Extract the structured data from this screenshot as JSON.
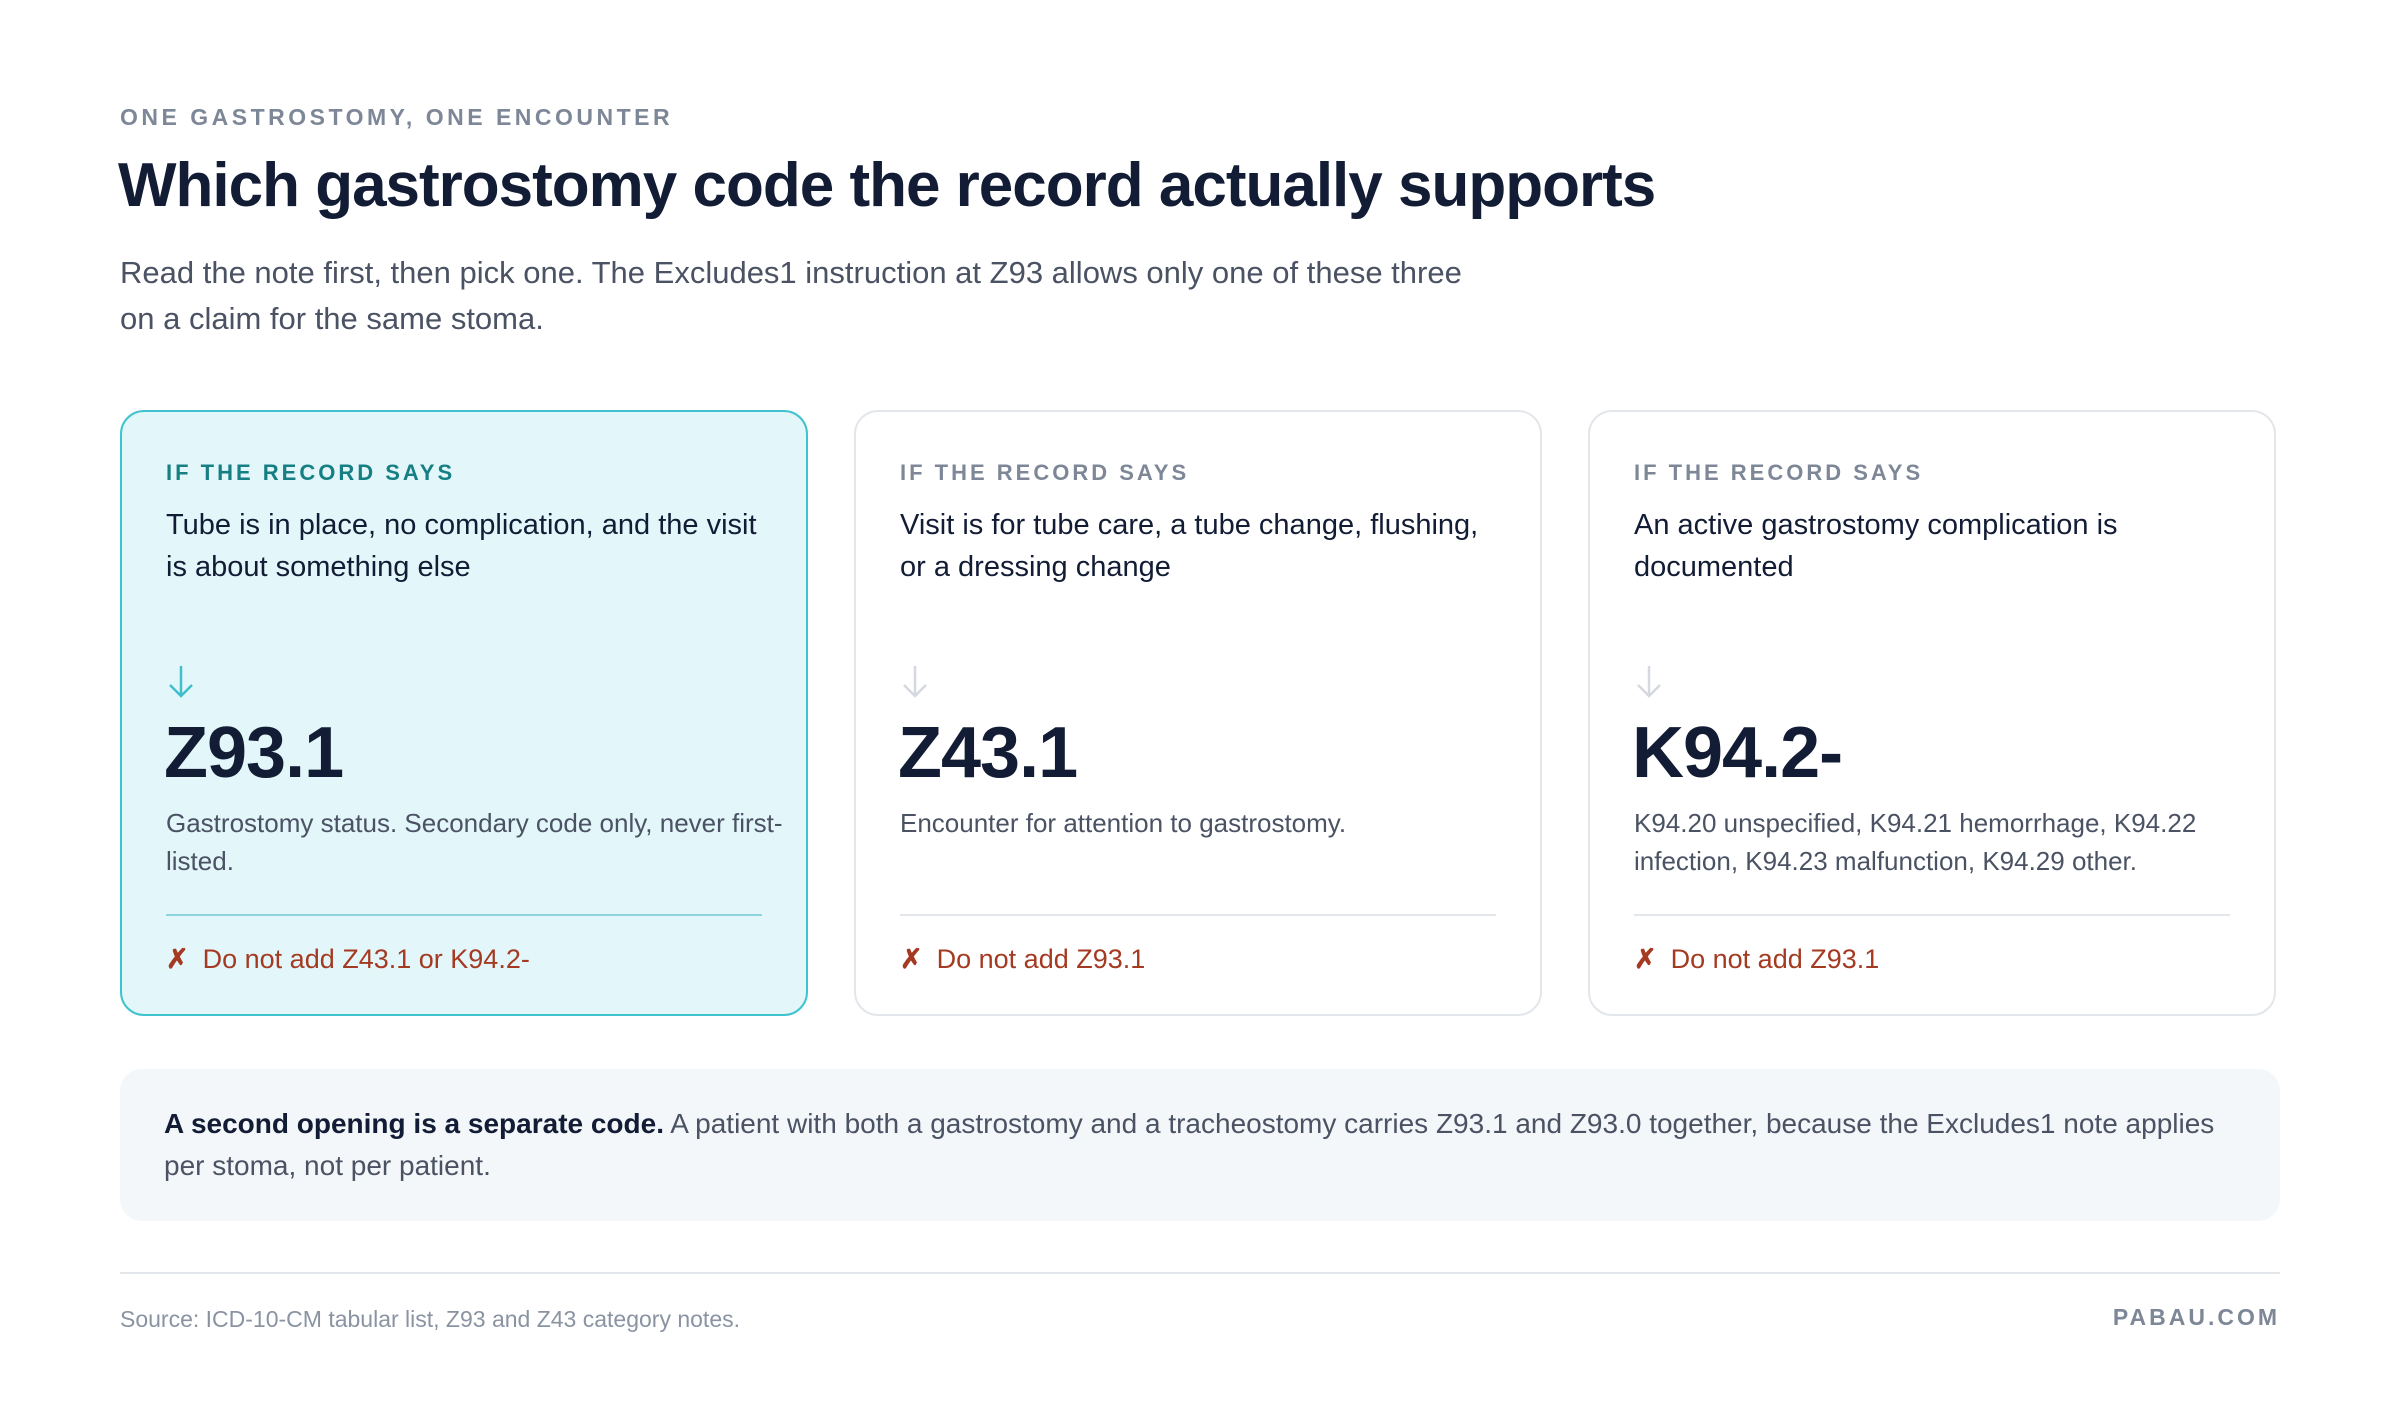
{
  "header": {
    "eyebrow": "ONE GASTROSTOMY, ONE ENCOUNTER",
    "title": "Which gastrostomy code the record actually supports",
    "subtitle": "Read the note first, then pick one. The Excludes1 instruction at Z93 allows only one of these three on a claim for the same stoma."
  },
  "cards": [
    {
      "label": "IF THE RECORD SAYS",
      "condition": "Tube is in place, no complication, and the visit is about something else",
      "code": "Z93.1",
      "description": "Gastrostomy status. Secondary code only, never first-listed.",
      "icon": "✗",
      "warning": "Do not add Z43.1 or K94.2-"
    },
    {
      "label": "IF THE RECORD SAYS",
      "condition": "Visit is for tube care, a tube change, flushing, or a dressing change",
      "code": "Z43.1",
      "description": "Encounter for attention to gastrostomy.",
      "icon": "✗",
      "warning": "Do not add Z93.1"
    },
    {
      "label": "IF THE RECORD SAYS",
      "condition": "An active gastrostomy complication is documented",
      "code": "K94.2-",
      "description": "K94.20 unspecified, K94.21 hemorrhage, K94.22 infection, K94.23 malfunction, K94.29 other.",
      "icon": "✗",
      "warning": "Do not add Z93.1"
    }
  ],
  "note": {
    "lead": "A second opening is a separate code.",
    "body": "A patient with both a gastrostomy and a tracheostomy carries Z93.1 and Z93.0 together, because the Excludes1 note applies per stoma, not per patient."
  },
  "footer": {
    "source": "Source: ICD-10-CM tabular list, Z93 and Z43 category notes.",
    "brand": "PABAU.COM"
  }
}
